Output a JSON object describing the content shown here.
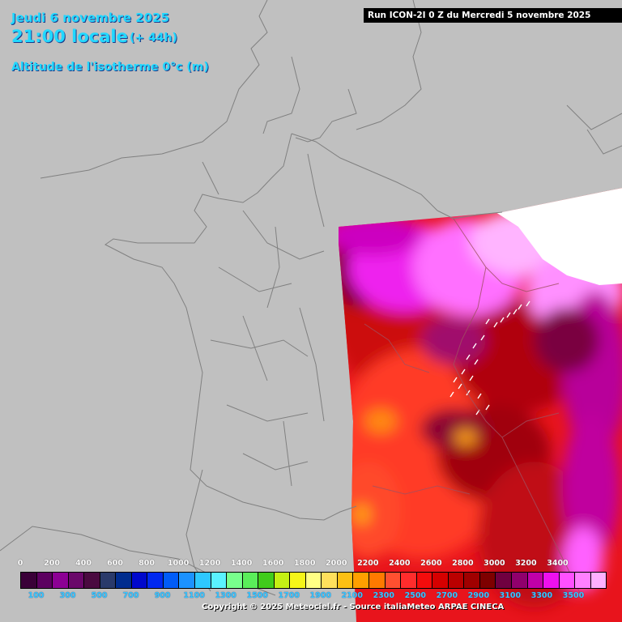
{
  "header": {
    "date": "Jeudi 6 novembre 2025",
    "time": "21:00 locale",
    "lead": "(+ 44h)",
    "variable": "Altitude de l'isotherme 0°c (m)",
    "run": "Run ICON-2I 0 Z du Mercredi 5 novembre 2025"
  },
  "legend": {
    "upper_ticks": [
      "0",
      "200",
      "400",
      "600",
      "800",
      "1000",
      "1200",
      "1400",
      "1600",
      "1800",
      "2000",
      "2200",
      "2400",
      "2600",
      "2800",
      "3000",
      "3200",
      "3400"
    ],
    "lower_ticks": [
      "100",
      "300",
      "500",
      "700",
      "900",
      "1100",
      "1300",
      "1500",
      "1700",
      "1900",
      "2100",
      "2300",
      "2500",
      "2700",
      "2900",
      "3100",
      "3300",
      "3500"
    ],
    "colors": [
      "#3a0038",
      "#5c0060",
      "#8c0094",
      "#6a086a",
      "#4a0a40",
      "#2a3a6a",
      "#002c8e",
      "#0008cc",
      "#0028f0",
      "#005cf8",
      "#1c92ff",
      "#2ec8ff",
      "#5af2ff",
      "#78ff8c",
      "#5aee5a",
      "#40cc1c",
      "#c4f014",
      "#f6f618",
      "#ffff84",
      "#ffe05c",
      "#fcc014",
      "#ffa000",
      "#ff7a00",
      "#ff5030",
      "#ff2c2c",
      "#f40c0c",
      "#d60000",
      "#ba0000",
      "#a00000",
      "#7e0000",
      "#700040",
      "#90006c",
      "#c000a8",
      "#ee10ee",
      "#ff50ff",
      "#ff80ff",
      "#ffb0ff"
    ]
  },
  "copyright": "Copyright © 2025 Meteociel.fr - Source italiaMeteo ARPAE CINECA",
  "colors": {
    "land": "#c0c0c0",
    "no_data": "#ffffff",
    "header_text": "#22d8ff",
    "border_line": "#808080"
  }
}
